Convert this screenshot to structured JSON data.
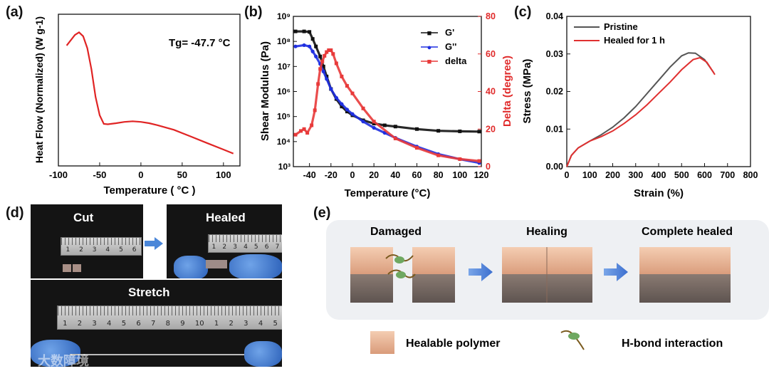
{
  "panels": {
    "a": "(a)",
    "b": "(b)",
    "c": "(c)",
    "d": "(d)",
    "e": "(e)"
  },
  "chart_data": [
    {
      "id": "a",
      "type": "line",
      "title": "",
      "xlabel": "Temperature ( °C )",
      "ylabel": "Heat Flow (Normalized) (W g-1)",
      "xlim": [
        -100,
        120
      ],
      "xticks": [
        -100,
        -50,
        0,
        50,
        100
      ],
      "annotation": "Tg= -47.7 °C",
      "series": [
        {
          "name": "DSC",
          "color": "#e02424",
          "x": [
            -90,
            -80,
            -75,
            -70,
            -65,
            -60,
            -55,
            -50,
            -45,
            -40,
            -30,
            -20,
            -10,
            0,
            10,
            20,
            40,
            60,
            80,
            100,
            112
          ],
          "y": [
            0.86,
            0.94,
            0.96,
            0.93,
            0.84,
            0.68,
            0.47,
            0.33,
            0.265,
            0.262,
            0.27,
            0.28,
            0.285,
            0.28,
            0.27,
            0.255,
            0.22,
            0.17,
            0.12,
            0.07,
            0.04
          ]
        }
      ]
    },
    {
      "id": "b",
      "type": "scatter",
      "xlabel": "Temperature (°C)",
      "ylabel": "Shear Modulus (Pa)",
      "y2label": "Delta (degree)",
      "xlim": [
        -55,
        120
      ],
      "xticks": [
        -40,
        -20,
        0,
        20,
        40,
        60,
        80,
        100,
        120
      ],
      "ylim_log": [
        3,
        9
      ],
      "yticks_log": [
        3,
        4,
        5,
        6,
        7,
        8,
        9
      ],
      "ytick_labels": [
        "10³",
        "10⁴",
        "10⁵",
        "10⁶",
        "10⁷",
        "10⁸",
        "10⁹"
      ],
      "y2lim": [
        0,
        80
      ],
      "y2ticks": [
        0,
        20,
        40,
        60,
        80
      ],
      "legend": [
        {
          "name": "G'",
          "color": "#111111",
          "marker": "■"
        },
        {
          "name": "G''",
          "color": "#1f2fe0",
          "marker": "●"
        },
        {
          "name": "delta",
          "color": "#e83a3a",
          "marker": "■"
        }
      ],
      "series": [
        {
          "name": "G'",
          "axis": "left",
          "color": "#111111",
          "x": [
            -53,
            -45,
            -40,
            -37,
            -34,
            -30,
            -27,
            -24,
            -20,
            -15,
            -10,
            -5,
            0,
            10,
            20,
            30,
            40,
            60,
            80,
            100,
            118
          ],
          "logy": [
            8.4,
            8.4,
            8.38,
            8.1,
            7.8,
            7.4,
            7.0,
            6.6,
            6.1,
            5.7,
            5.4,
            5.2,
            5.05,
            4.85,
            4.72,
            4.65,
            4.6,
            4.5,
            4.43,
            4.41,
            4.4
          ]
        },
        {
          "name": "G''",
          "axis": "left",
          "color": "#1f2fe0",
          "x": [
            -53,
            -45,
            -40,
            -37,
            -34,
            -30,
            -27,
            -24,
            -20,
            -15,
            -10,
            -5,
            0,
            10,
            20,
            30,
            40,
            60,
            80,
            100,
            118
          ],
          "logy": [
            7.8,
            7.85,
            7.8,
            7.6,
            7.4,
            7.1,
            6.8,
            6.5,
            6.1,
            5.75,
            5.5,
            5.28,
            5.1,
            4.8,
            4.55,
            4.35,
            4.15,
            3.8,
            3.5,
            3.3,
            3.15
          ]
        },
        {
          "name": "delta",
          "axis": "right",
          "color": "#e83a3a",
          "x": [
            -53,
            -48,
            -45,
            -42,
            -38,
            -35,
            -32,
            -30,
            -28,
            -26,
            -24,
            -22,
            -20,
            -18,
            -15,
            -10,
            -5,
            0,
            10,
            20,
            40,
            60,
            80,
            100,
            118
          ],
          "y": [
            17,
            19,
            20,
            18,
            22,
            30,
            44,
            52,
            56,
            59,
            61,
            62,
            62,
            60,
            55,
            48,
            43,
            39,
            31,
            24,
            15,
            10,
            6,
            4,
            3
          ]
        }
      ]
    },
    {
      "id": "c",
      "type": "line",
      "xlabel": "Strain (%)",
      "ylabel": "Stress (MPa)",
      "xlim": [
        0,
        800
      ],
      "xticks": [
        0,
        100,
        200,
        300,
        400,
        500,
        600,
        700,
        800
      ],
      "ylim": [
        0,
        0.04
      ],
      "yticks": [
        0.0,
        0.01,
        0.02,
        0.03,
        0.04
      ],
      "ytick_labels": [
        "0.00",
        "0.01",
        "0.02",
        "0.03",
        "0.04"
      ],
      "legend": [
        {
          "name": "Pristine",
          "color": "#555555"
        },
        {
          "name": "Healed for 1 h",
          "color": "#e03030"
        }
      ],
      "series": [
        {
          "name": "Pristine",
          "color": "#555555",
          "x": [
            0,
            20,
            50,
            100,
            150,
            200,
            250,
            300,
            350,
            400,
            450,
            500,
            530,
            560,
            600,
            640
          ],
          "y": [
            0,
            0.003,
            0.005,
            0.0068,
            0.0085,
            0.0105,
            0.013,
            0.016,
            0.0195,
            0.023,
            0.0265,
            0.0295,
            0.0303,
            0.0302,
            0.0285,
            0.025
          ]
        },
        {
          "name": "Healed for 1 h",
          "color": "#e03030",
          "x": [
            0,
            20,
            50,
            100,
            150,
            200,
            250,
            300,
            350,
            400,
            450,
            500,
            550,
            580,
            610,
            645
          ],
          "y": [
            0,
            0.003,
            0.005,
            0.0068,
            0.008,
            0.0095,
            0.0115,
            0.0138,
            0.0165,
            0.0195,
            0.0225,
            0.0258,
            0.0285,
            0.029,
            0.0278,
            0.0245
          ]
        }
      ]
    }
  ],
  "photos": {
    "cut": "Cut",
    "healed": "Healed",
    "stretch": "Stretch",
    "ruler_small": [
      "1",
      "2",
      "3",
      "4",
      "5",
      "6",
      "7"
    ],
    "ruler_large": [
      "1",
      "2",
      "3",
      "4",
      "5",
      "6",
      "7",
      "8",
      "9",
      "10",
      "1",
      "2",
      "3",
      "4",
      "5"
    ],
    "watermark": "大数障境"
  },
  "schematic": {
    "damaged": "Damaged",
    "healing": "Healing",
    "complete": "Complete healed",
    "legend_polymer": "Healable polymer",
    "legend_hbond": "H-bond interaction"
  }
}
